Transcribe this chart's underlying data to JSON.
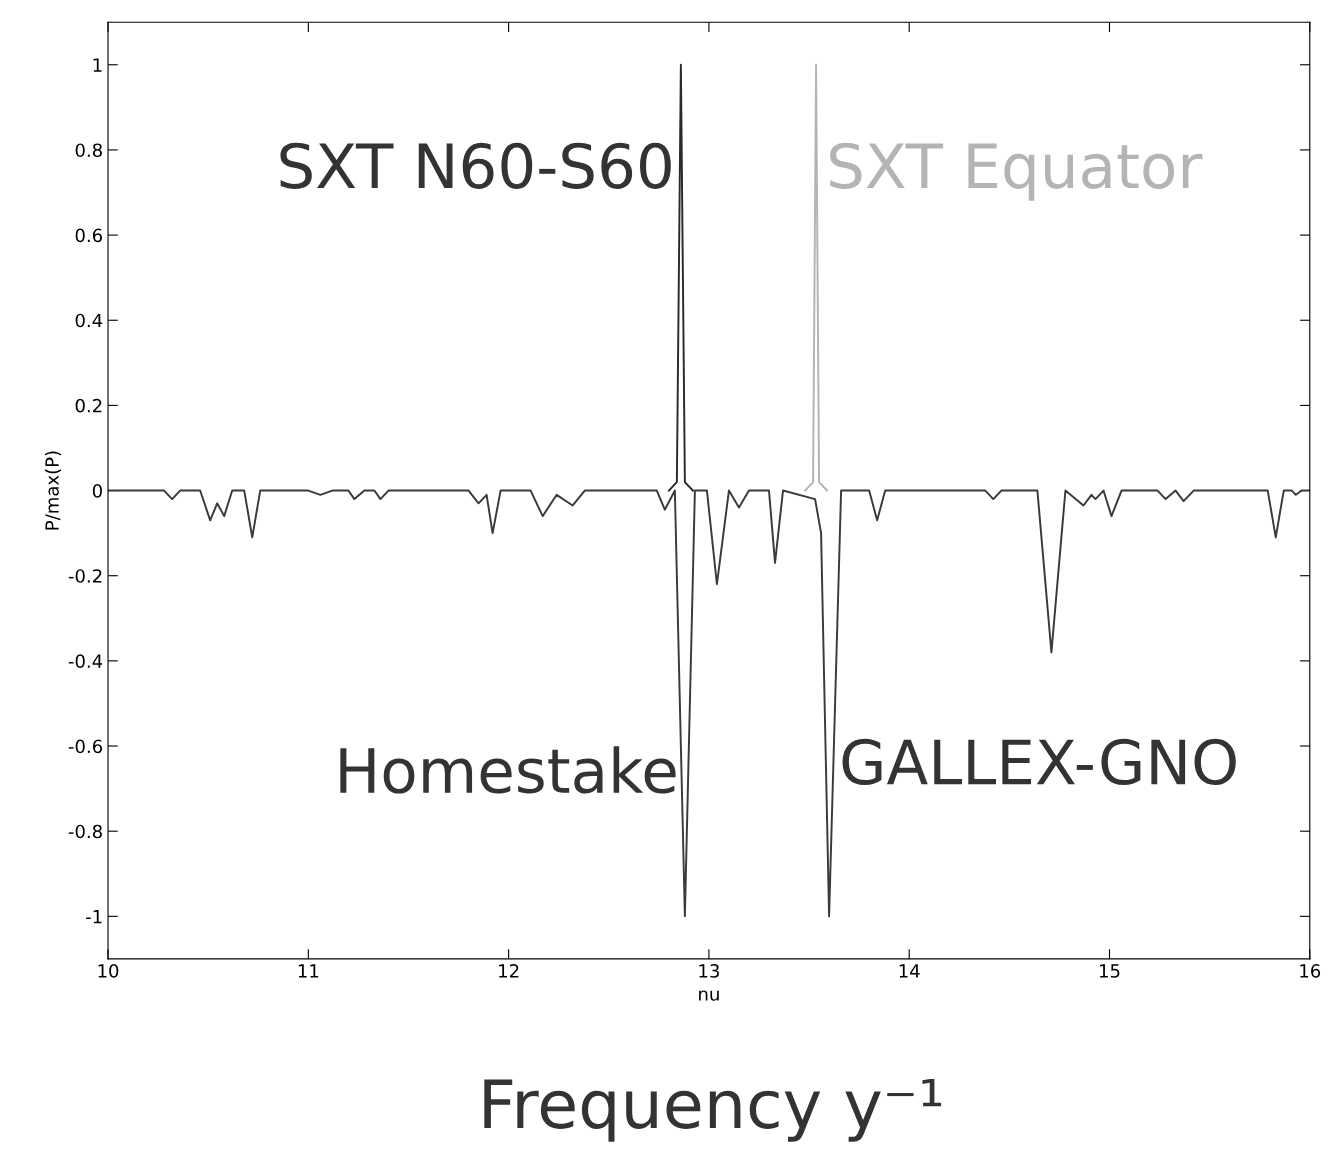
{
  "chart_data": {
    "type": "line",
    "xlabel": "nu",
    "ylabel": "P/max(P)",
    "xlim": [
      10,
      16
    ],
    "ylim": [
      -1.1,
      1.1
    ],
    "xticks": [
      10,
      11,
      12,
      13,
      14,
      15,
      16
    ],
    "yticks": [
      -1,
      -0.8,
      -0.6,
      -0.4,
      -0.2,
      0,
      0.2,
      0.4,
      0.6,
      0.8,
      1
    ],
    "grid": false,
    "legend": false,
    "series": [
      {
        "color": "#2a2a2a",
        "x": [
          12.8,
          12.84,
          12.86,
          12.88,
          12.92
        ],
        "values": [
          0,
          0.02,
          1,
          0.02,
          0
        ]
      },
      {
        "color": "#b4b4b4",
        "x": [
          13.48,
          13.52,
          13.535,
          13.55,
          13.59
        ],
        "values": [
          0,
          0.02,
          1,
          0.02,
          0
        ]
      },
      {
        "color": "#3a3a3a",
        "x": [
          10,
          10.28,
          10.32,
          10.36,
          10.46,
          10.51,
          10.545,
          10.58,
          10.62,
          10.68,
          10.72,
          10.76,
          11.0,
          11.06,
          11.12,
          11.2,
          11.23,
          11.28,
          11.33,
          11.36,
          11.4,
          11.8,
          11.85,
          11.89,
          11.92,
          11.96,
          12.11,
          12.17,
          12.24,
          12.32,
          12.38,
          12.74,
          12.78,
          12.83,
          12.88,
          12.93,
          12.99,
          13.04,
          13.1,
          13.15,
          13.2,
          13.3,
          13.33,
          13.37,
          13.53,
          13.56,
          13.6,
          13.66,
          13.8,
          13.84,
          13.88,
          14.38,
          14.42,
          14.46,
          14.64,
          14.71,
          14.78,
          14.87,
          14.91,
          14.93,
          14.97,
          15.01,
          15.06,
          15.24,
          15.28,
          15.33,
          15.37,
          15.42,
          15.79,
          15.83,
          15.87,
          15.91,
          15.93,
          15.96,
          16
        ],
        "values": [
          0,
          0,
          -0.02,
          0,
          0,
          -0.07,
          -0.03,
          -0.06,
          0,
          0,
          -0.11,
          0,
          0,
          -0.01,
          0,
          0,
          -0.02,
          0,
          0,
          -0.02,
          0,
          0,
          -0.03,
          -0.01,
          -0.1,
          0,
          0,
          -0.06,
          -0.01,
          -0.035,
          0,
          0,
          -0.045,
          0,
          -1.0,
          0,
          0,
          -0.22,
          0,
          -0.04,
          0,
          0,
          -0.17,
          0,
          -0.02,
          -0.1,
          -1.0,
          0,
          0,
          -0.07,
          0,
          0,
          -0.02,
          0,
          0,
          -0.38,
          0,
          -0.035,
          -0.01,
          -0.02,
          0,
          -0.06,
          0,
          0,
          -0.02,
          0,
          -0.025,
          0,
          0,
          -0.11,
          0,
          0,
          -0.01,
          0,
          0
        ]
      }
    ],
    "annotations": [
      {
        "text": "SXT N60-S60",
        "x": 12.86,
        "y": 0.75
      },
      {
        "text": "SXT Equator",
        "x": 13.535,
        "y": 0.75
      },
      {
        "text": "Homestake",
        "x": 12.88,
        "y": -0.67
      },
      {
        "text": "GALLEX-GNO",
        "x": 13.6,
        "y": -0.65
      },
      "Frequency y⁻¹"
    ]
  }
}
